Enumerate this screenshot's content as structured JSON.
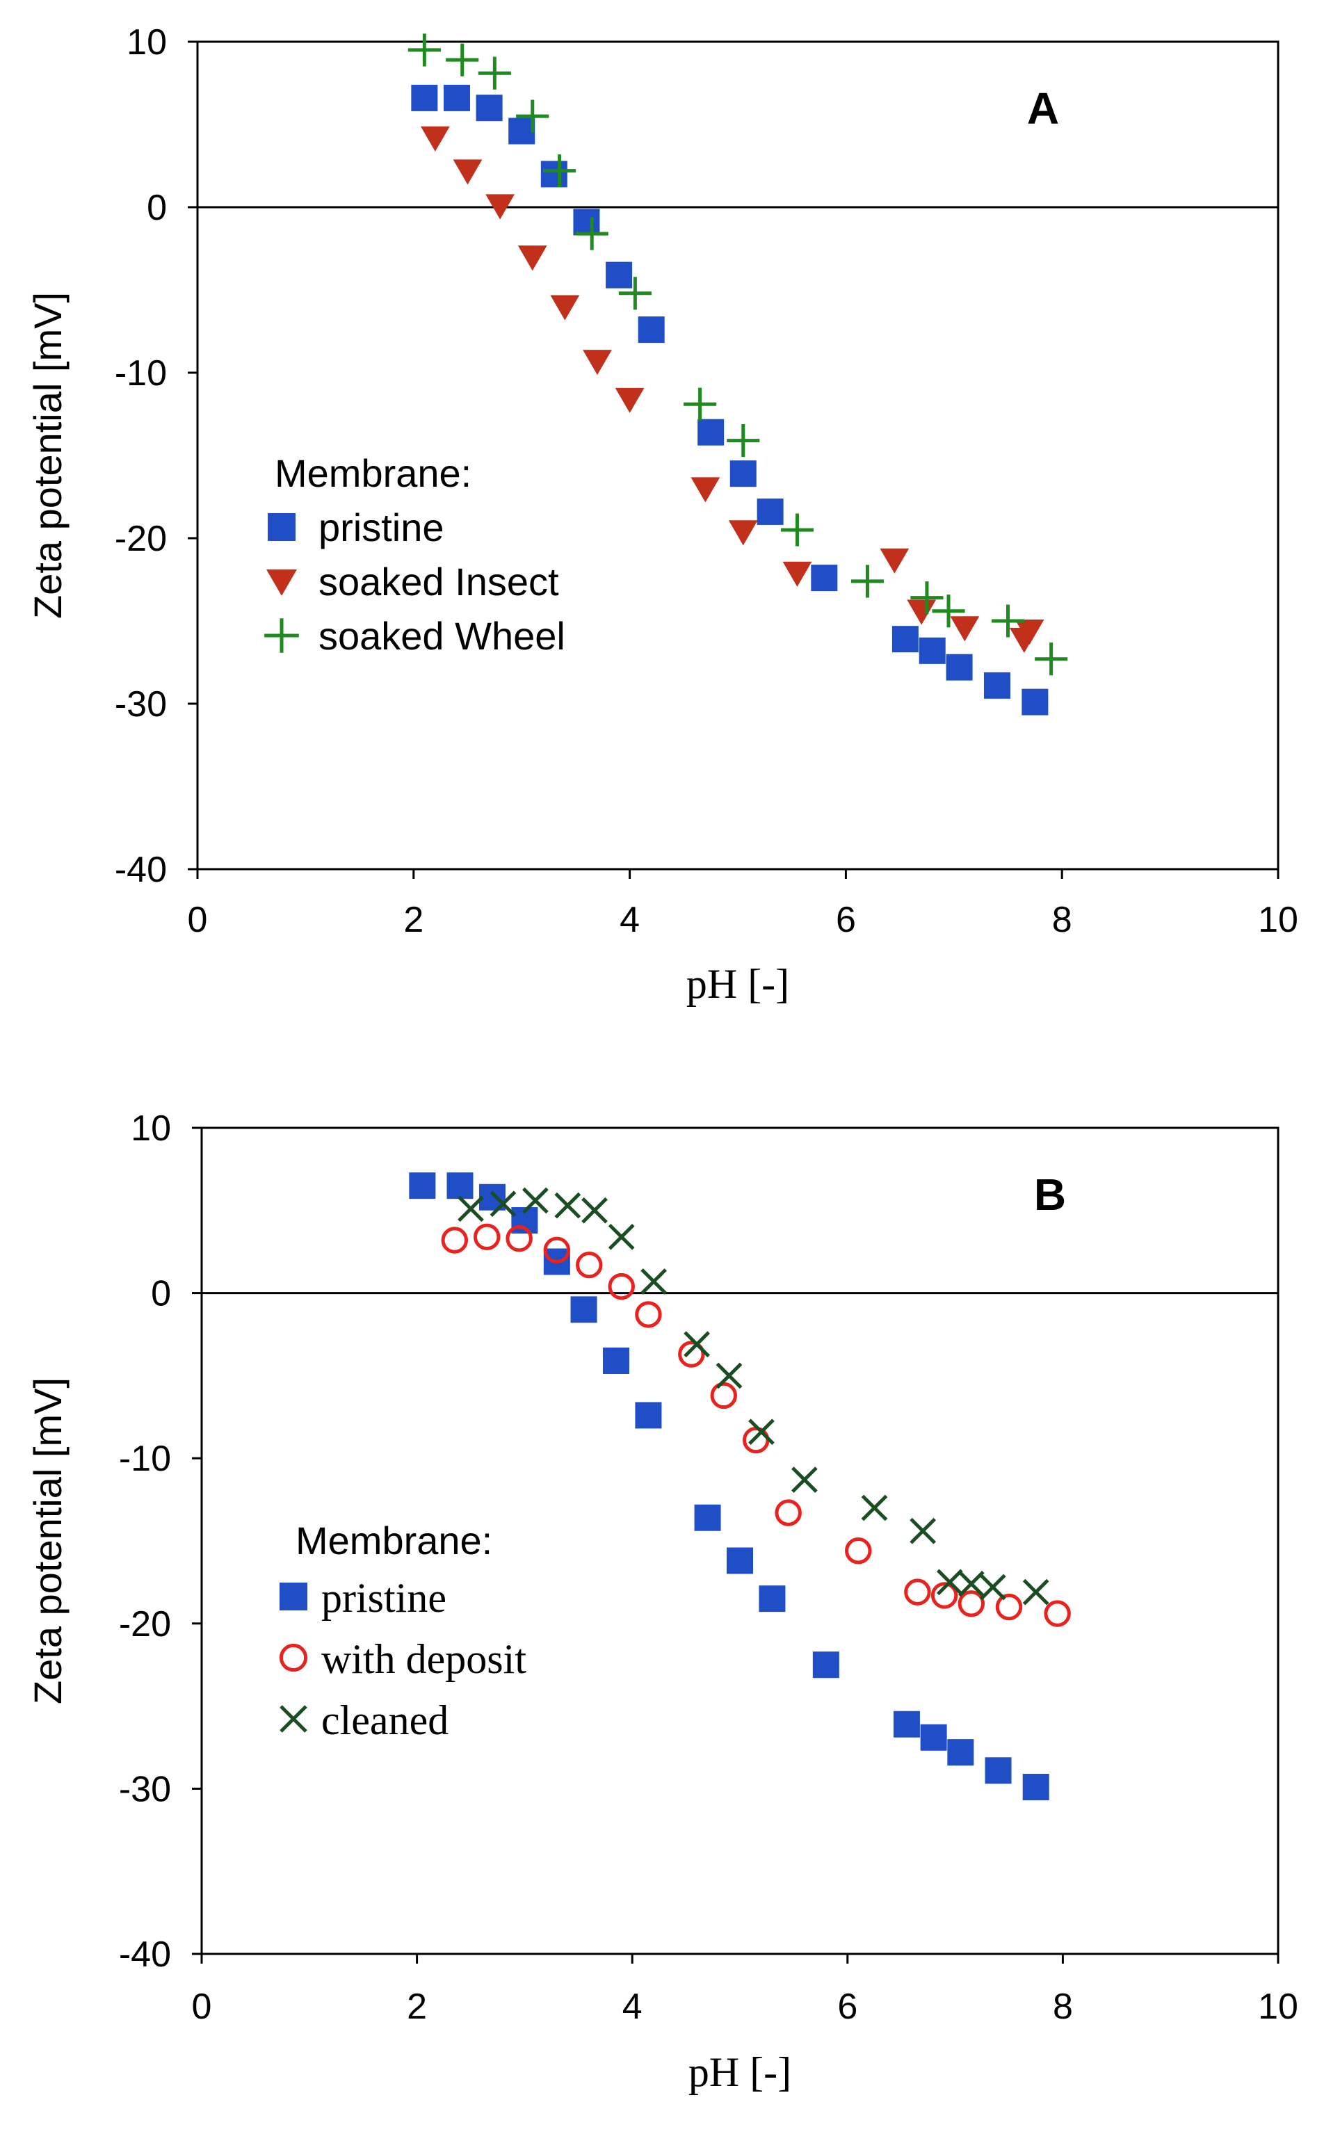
{
  "chart_data": [
    {
      "type": "scatter",
      "title": "A",
      "xlabel": "pH [-]",
      "ylabel": "Zeta potential [mV]",
      "xlim": [
        0,
        10
      ],
      "ylim": [
        -40,
        10
      ],
      "x_ticks": [
        "0",
        "2",
        "4",
        "6",
        "8",
        "10"
      ],
      "y_ticks": [
        "10",
        "0",
        "-10",
        "-20",
        "-30",
        "-40"
      ],
      "zero_line": true,
      "legend": {
        "title": "Membrane:",
        "location": "left-middle"
      },
      "series": [
        {
          "name": "pristine",
          "marker": "square",
          "color": "#1f4ec7",
          "x": [
            2.1,
            2.4,
            2.7,
            3.0,
            3.3,
            3.6,
            3.9,
            4.2,
            4.75,
            5.05,
            5.3,
            5.8,
            6.55,
            6.8,
            7.05,
            7.4,
            7.75
          ],
          "y": [
            6.6,
            6.6,
            6.0,
            4.6,
            2.0,
            -0.9,
            -4.1,
            -7.4,
            -13.6,
            -16.1,
            -18.4,
            -22.4,
            -26.1,
            -26.8,
            -27.8,
            -28.9,
            -29.9
          ]
        },
        {
          "name": "soaked Insect",
          "marker": "triangle-down",
          "color": "#c0301a",
          "x": [
            2.2,
            2.5,
            2.8,
            3.1,
            3.4,
            3.7,
            4.0,
            4.7,
            5.05,
            5.55,
            6.45,
            6.7,
            7.1,
            7.65,
            7.7
          ],
          "y": [
            4.2,
            2.2,
            0.1,
            -3.0,
            -6.0,
            -9.3,
            -11.6,
            -17.0,
            -19.6,
            -22.1,
            -21.3,
            -24.4,
            -25.4,
            -26.1,
            -25.6
          ]
        },
        {
          "name": "soaked Wheel",
          "marker": "plus",
          "color": "#1f8a1f",
          "x": [
            2.1,
            2.45,
            2.75,
            3.1,
            3.35,
            3.65,
            4.05,
            4.65,
            5.05,
            5.55,
            6.2,
            6.75,
            6.95,
            7.5,
            7.9
          ],
          "y": [
            9.5,
            8.9,
            8.1,
            5.5,
            2.2,
            -1.6,
            -5.2,
            -11.9,
            -14.1,
            -19.5,
            -22.6,
            -23.6,
            -24.4,
            -25.0,
            -27.3
          ]
        }
      ]
    },
    {
      "type": "scatter",
      "title": "B",
      "xlabel": "pH [-]",
      "ylabel": "Zeta potential [mV]",
      "xlim": [
        0,
        10
      ],
      "ylim": [
        -40,
        10
      ],
      "x_ticks": [
        "0",
        "2",
        "4",
        "6",
        "8",
        "10"
      ],
      "y_ticks": [
        "10",
        "0",
        "-10",
        "-20",
        "-30",
        "-40"
      ],
      "zero_line": true,
      "legend": {
        "title": "Membrane:",
        "location": "left-lower"
      },
      "series": [
        {
          "name": "pristine",
          "marker": "square",
          "color": "#1f4ec7",
          "x": [
            2.05,
            2.4,
            2.7,
            3.0,
            3.3,
            3.55,
            3.85,
            4.15,
            4.7,
            5.0,
            5.3,
            5.8,
            6.55,
            6.8,
            7.05,
            7.4,
            7.75
          ],
          "y": [
            6.5,
            6.5,
            5.8,
            4.4,
            1.9,
            -1.0,
            -4.1,
            -7.4,
            -13.6,
            -16.2,
            -18.5,
            -22.5,
            -26.1,
            -26.9,
            -27.8,
            -28.9,
            -29.9
          ]
        },
        {
          "name": "with deposit",
          "marker": "circle-open",
          "color": "#e8231f",
          "x": [
            2.35,
            2.65,
            2.95,
            3.3,
            3.6,
            3.9,
            4.15,
            4.55,
            4.85,
            5.15,
            5.45,
            6.1,
            6.65,
            6.9,
            7.15,
            7.5,
            7.95
          ],
          "y": [
            3.2,
            3.4,
            3.3,
            2.6,
            1.7,
            0.4,
            -1.3,
            -3.7,
            -6.2,
            -8.9,
            -13.3,
            -15.6,
            -18.1,
            -18.3,
            -18.8,
            -19.0,
            -19.4
          ]
        },
        {
          "name": "cleaned",
          "marker": "x",
          "color": "#1b4d22",
          "x": [
            2.5,
            2.8,
            3.1,
            3.4,
            3.65,
            3.9,
            4.2,
            4.6,
            4.9,
            5.2,
            5.6,
            6.25,
            6.7,
            6.95,
            7.15,
            7.35,
            7.75
          ],
          "y": [
            5.1,
            5.4,
            5.6,
            5.3,
            5.0,
            3.4,
            0.7,
            -3.1,
            -5.0,
            -8.4,
            -11.3,
            -13.0,
            -14.4,
            -17.5,
            -17.6,
            -17.8,
            -18.1
          ]
        }
      ]
    }
  ]
}
